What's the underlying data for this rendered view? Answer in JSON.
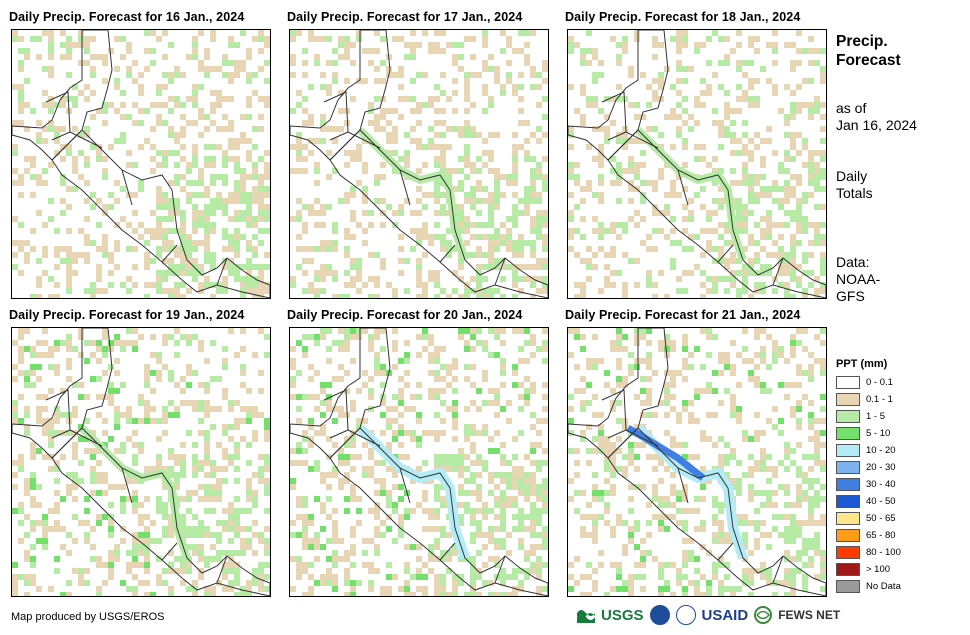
{
  "panels": [
    {
      "title": "Daily Precip. Forecast for 16 Jan., 2024",
      "day": 16
    },
    {
      "title": "Daily Precip. Forecast for 17 Jan., 2024",
      "day": 17
    },
    {
      "title": "Daily Precip. Forecast for 18 Jan., 2024",
      "day": 18
    },
    {
      "title": "Daily Precip. Forecast for 19 Jan., 2024",
      "day": 19
    },
    {
      "title": "Daily Precip. Forecast for 20 Jan., 2024",
      "day": 20
    },
    {
      "title": "Daily Precip. Forecast for 21 Jan., 2024",
      "day": 21
    }
  ],
  "side": {
    "title_line1": "Precip.",
    "title_line2": "Forecast",
    "asof_line1": "as of",
    "asof_line2": "Jan 16, 2024",
    "totals_line1": "Daily",
    "totals_line2": "Totals",
    "source_line1": "Data:",
    "source_line2": "NOAA-",
    "source_line3": "GFS"
  },
  "legend": {
    "title": "PPT (mm)",
    "items": [
      {
        "label": "0 - 0.1",
        "color": "#ffffff"
      },
      {
        "label": "0.1 - 1",
        "color": "#e8d5b4"
      },
      {
        "label": "1 - 5",
        "color": "#b5eba4"
      },
      {
        "label": "5 - 10",
        "color": "#72e06a"
      },
      {
        "label": "10 - 20",
        "color": "#b3ecf7"
      },
      {
        "label": "20 - 30",
        "color": "#7fb3ee"
      },
      {
        "label": "30 - 40",
        "color": "#3f7fe2"
      },
      {
        "label": "40 - 50",
        "color": "#1c57d4"
      },
      {
        "label": "50 - 65",
        "color": "#ffe68a"
      },
      {
        "label": "65 - 80",
        "color": "#ff9d1a"
      },
      {
        "label": "80 - 100",
        "color": "#ff3b00"
      },
      {
        "label": "> 100",
        "color": "#a11818"
      },
      {
        "label": "No Data",
        "color": "#9a9a9a"
      }
    ]
  },
  "credit": "Map produced by USGS/EROS",
  "logos": [
    "USGS",
    "USAID",
    "FEWS NET"
  ]
}
